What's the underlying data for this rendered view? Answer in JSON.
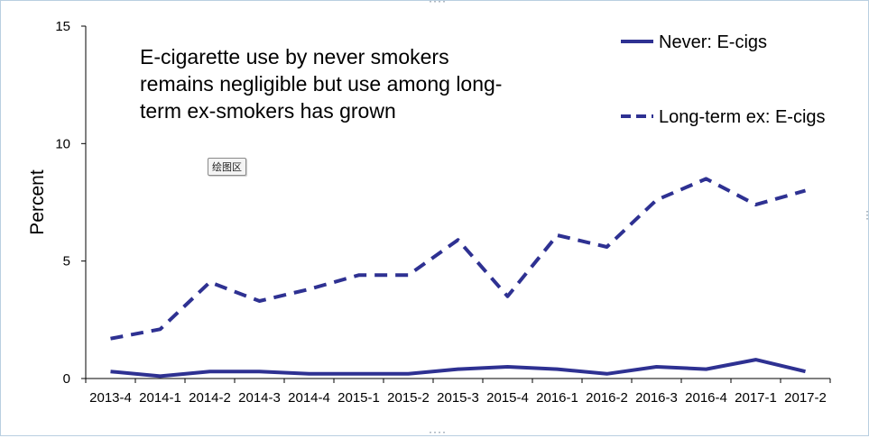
{
  "chart_data": {
    "type": "line",
    "categories": [
      "2013-4",
      "2014-1",
      "2014-2",
      "2014-3",
      "2014-4",
      "2015-1",
      "2015-2",
      "2015-3",
      "2015-4",
      "2016-1",
      "2016-2",
      "2016-3",
      "2016-4",
      "2017-1",
      "2017-2"
    ],
    "series": [
      {
        "name": "Never: E-cigs",
        "style": "solid",
        "color": "#2e3192",
        "values": [
          0.3,
          0.1,
          0.3,
          0.3,
          0.2,
          0.2,
          0.2,
          0.4,
          0.5,
          0.4,
          0.2,
          0.5,
          0.4,
          0.8,
          0.3
        ]
      },
      {
        "name": "Long-term ex: E-cigs",
        "style": "dashed",
        "color": "#2e3192",
        "values": [
          1.7,
          2.1,
          4.1,
          3.3,
          3.8,
          4.4,
          4.4,
          5.9,
          3.5,
          6.1,
          5.6,
          7.6,
          8.5,
          7.4,
          8.0
        ]
      }
    ],
    "ylabel": "Percent",
    "xlabel": "",
    "ylim": [
      0,
      15
    ],
    "yticks": [
      0,
      5,
      10,
      15
    ],
    "grid": false,
    "legend": "top-right",
    "annotation": [
      "E-cigarette use by never smokers",
      "remains negligible but use among long-",
      "term ex-smokers has grown"
    ]
  },
  "plot_area_tag": "绘图区"
}
